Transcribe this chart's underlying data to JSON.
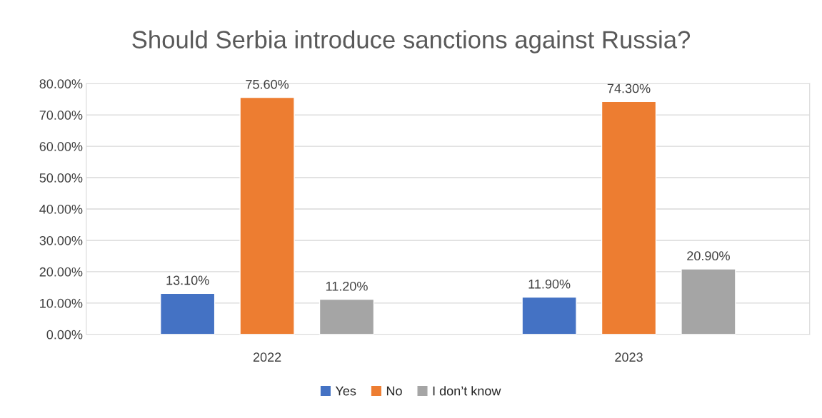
{
  "chart_data": {
    "type": "bar",
    "title": "Should Serbia introduce sanctions against Russia?",
    "categories": [
      "2022",
      "2023"
    ],
    "series": [
      {
        "name": "Yes",
        "color": "#4472c4",
        "values": [
          13.1,
          11.9
        ],
        "value_labels": [
          "13.10%",
          "11.90%"
        ]
      },
      {
        "name": "No",
        "color": "#ed7d31",
        "values": [
          75.6,
          74.3
        ],
        "value_labels": [
          "75.60%",
          "74.30%"
        ]
      },
      {
        "name": "I don’t know",
        "color": "#a5a5a5",
        "values": [
          11.2,
          20.9
        ],
        "value_labels": [
          "11.20%",
          "20.90%"
        ]
      }
    ],
    "ylim": [
      0,
      80
    ],
    "yticks": [
      {
        "value": 0,
        "label": "0.00%"
      },
      {
        "value": 10,
        "label": "10.00%"
      },
      {
        "value": 20,
        "label": "20.00%"
      },
      {
        "value": 30,
        "label": "30.00%"
      },
      {
        "value": 40,
        "label": "40.00%"
      },
      {
        "value": 50,
        "label": "50.00%"
      },
      {
        "value": 60,
        "label": "60.00%"
      },
      {
        "value": 70,
        "label": "70.00%"
      },
      {
        "value": 80,
        "label": "80.00%"
      }
    ],
    "grid": "y",
    "legend": "bottom"
  }
}
